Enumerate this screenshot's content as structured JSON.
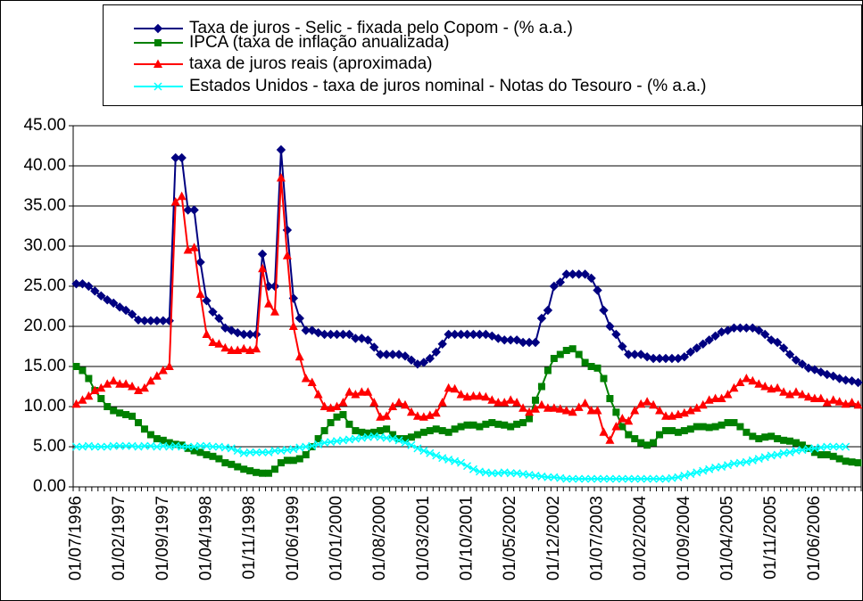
{
  "chart_data": {
    "type": "line",
    "categories": [
      "01/07/1996",
      null,
      null,
      null,
      null,
      null,
      null,
      "01/02/1997",
      null,
      null,
      null,
      null,
      null,
      null,
      "01/09/1997",
      null,
      null,
      null,
      null,
      null,
      null,
      "01/04/1998",
      null,
      null,
      null,
      null,
      null,
      null,
      "01/11/1998",
      null,
      null,
      null,
      null,
      null,
      null,
      "01/06/1999",
      null,
      null,
      null,
      null,
      null,
      null,
      "01/01/2000",
      null,
      null,
      null,
      null,
      null,
      null,
      "01/08/2000",
      null,
      null,
      null,
      null,
      null,
      null,
      "01/03/2001",
      null,
      null,
      null,
      null,
      null,
      null,
      "01/10/2001",
      null,
      null,
      null,
      null,
      null,
      null,
      "01/05/2002",
      null,
      null,
      null,
      null,
      null,
      null,
      "01/12/2002",
      null,
      null,
      null,
      null,
      null,
      null,
      "01/07/2003",
      null,
      null,
      null,
      null,
      null,
      null,
      "01/02/2004",
      null,
      null,
      null,
      null,
      null,
      null,
      "01/09/2004",
      null,
      null,
      null,
      null,
      null,
      null,
      "01/04/2005",
      null,
      null,
      null,
      null,
      null,
      null,
      "01/11/2005",
      null,
      null,
      null,
      null,
      null,
      null,
      "01/06/2006",
      null,
      null,
      null,
      null,
      null,
      null,
      null
    ],
    "series": [
      {
        "name": "Taxa de juros - Selic - fixada pelo Copom - (% a.a.)",
        "color": "#000080",
        "marker": "diamond",
        "values": [
          25.3,
          25.3,
          25.0,
          24.4,
          23.8,
          23.3,
          22.9,
          22.4,
          22.0,
          21.5,
          20.8,
          20.7,
          20.7,
          20.7,
          20.7,
          20.7,
          41.0,
          41.0,
          34.5,
          34.5,
          28.0,
          23.2,
          21.8,
          21.0,
          19.8,
          19.5,
          19.2,
          19.0,
          19.0,
          19.0,
          29.0,
          25.0,
          25.0,
          42.0,
          32.0,
          23.5,
          21.0,
          19.5,
          19.5,
          19.2,
          19.0,
          19.0,
          19.0,
          19.0,
          19.0,
          18.5,
          18.5,
          18.3,
          17.4,
          16.5,
          16.5,
          16.5,
          16.5,
          16.3,
          15.8,
          15.3,
          15.5,
          16.0,
          16.8,
          17.8,
          19.0,
          19.0,
          19.0,
          19.0,
          19.0,
          19.0,
          19.0,
          18.8,
          18.5,
          18.3,
          18.3,
          18.3,
          18.0,
          18.0,
          18.0,
          21.0,
          22.0,
          25.0,
          25.5,
          26.5,
          26.5,
          26.5,
          26.5,
          26.0,
          24.5,
          22.0,
          20.0,
          19.0,
          17.5,
          16.5,
          16.5,
          16.5,
          16.2,
          16.0,
          16.0,
          16.0,
          16.0,
          16.0,
          16.2,
          16.8,
          17.3,
          17.8,
          18.3,
          18.8,
          19.3,
          19.5,
          19.8,
          19.8,
          19.8,
          19.8,
          19.5,
          19.0,
          18.3,
          18.0,
          17.3,
          16.5,
          15.8,
          15.3,
          14.8,
          14.6,
          14.3,
          14.0,
          13.8,
          13.5,
          13.3,
          13.2,
          13.0
        ]
      },
      {
        "name": "IPCA (taxa de inflação anualizada)",
        "color": "#008000",
        "marker": "square",
        "values": [
          15.0,
          14.5,
          13.5,
          12.0,
          11.0,
          10.0,
          9.5,
          9.2,
          9.0,
          8.8,
          8.0,
          7.2,
          6.5,
          6.0,
          5.8,
          5.5,
          5.3,
          5.2,
          4.8,
          4.5,
          4.3,
          4.0,
          3.8,
          3.5,
          3.0,
          2.8,
          2.5,
          2.2,
          2.0,
          1.8,
          1.7,
          1.7,
          2.2,
          3.0,
          3.3,
          3.3,
          3.5,
          4.0,
          5.0,
          6.0,
          7.0,
          8.0,
          8.7,
          9.0,
          7.8,
          7.0,
          6.8,
          6.7,
          6.8,
          7.0,
          7.2,
          6.5,
          6.0,
          6.0,
          6.2,
          6.5,
          6.8,
          7.0,
          7.2,
          7.0,
          6.8,
          7.2,
          7.5,
          7.7,
          7.7,
          7.5,
          7.8,
          8.0,
          7.8,
          7.7,
          7.5,
          7.8,
          8.0,
          8.5,
          10.8,
          12.5,
          14.5,
          16.0,
          16.5,
          17.0,
          17.2,
          16.5,
          15.5,
          15.0,
          14.8,
          13.5,
          11.0,
          9.3,
          7.5,
          6.5,
          6.0,
          5.5,
          5.2,
          5.5,
          6.5,
          7.0,
          7.0,
          6.8,
          7.0,
          7.2,
          7.5,
          7.5,
          7.4,
          7.5,
          7.7,
          8.0,
          8.0,
          7.5,
          6.8,
          6.3,
          6.0,
          6.2,
          6.3,
          6.0,
          5.8,
          5.7,
          5.5,
          5.2,
          4.8,
          4.3,
          4.0,
          4.0,
          3.8,
          3.5,
          3.2,
          3.1,
          3.0
        ]
      },
      {
        "name": "taxa de juros reais (aproximada)",
        "color": "#ff0000",
        "marker": "triangle",
        "values": [
          10.3,
          10.8,
          11.3,
          12.0,
          12.3,
          12.8,
          13.2,
          12.8,
          12.8,
          12.5,
          12.0,
          12.3,
          13.2,
          13.8,
          14.5,
          15.0,
          35.5,
          36.2,
          29.5,
          29.8,
          24.0,
          19.0,
          18.0,
          17.8,
          17.3,
          17.0,
          17.0,
          17.2,
          17.0,
          17.2,
          27.2,
          22.8,
          21.8,
          38.5,
          28.8,
          20.0,
          16.2,
          13.5,
          13.0,
          11.5,
          10.0,
          9.8,
          10.0,
          10.5,
          11.8,
          11.5,
          11.8,
          11.8,
          10.5,
          8.7,
          8.8,
          10.0,
          10.5,
          10.2,
          9.3,
          8.8,
          8.7,
          8.9,
          9.2,
          10.5,
          12.3,
          12.2,
          11.5,
          11.2,
          11.3,
          11.3,
          11.2,
          10.8,
          10.5,
          10.5,
          10.8,
          10.5,
          9.8,
          9.3,
          9.7,
          10.2,
          9.8,
          9.8,
          9.7,
          9.5,
          9.3,
          9.9,
          10.4,
          9.5,
          9.5,
          6.8,
          5.8,
          7.5,
          8.5,
          8.2,
          9.5,
          10.3,
          10.6,
          10.2,
          9.5,
          8.8,
          8.8,
          9.0,
          9.2,
          9.5,
          9.8,
          10.2,
          10.8,
          11.0,
          11.0,
          11.5,
          12.3,
          13.0,
          13.5,
          13.2,
          12.8,
          12.5,
          12.2,
          12.3,
          11.8,
          11.5,
          11.8,
          11.5,
          11.2,
          11.0,
          11.0,
          10.5,
          10.8,
          10.6,
          10.3,
          10.5,
          10.2
        ]
      },
      {
        "name": "Estados Unidos - taxa de juros nominal - Notas do Tesouro - (% a.a.)",
        "color": "#00ffff",
        "marker": "x",
        "values": [
          5.0,
          5.0,
          5.1,
          5.0,
          5.0,
          5.0,
          5.1,
          5.1,
          5.1,
          5.1,
          5.0,
          5.1,
          5.1,
          5.0,
          5.1,
          5.0,
          5.1,
          5.0,
          5.0,
          5.0,
          5.1,
          5.1,
          5.0,
          5.0,
          4.9,
          4.8,
          4.5,
          4.2,
          4.3,
          4.3,
          4.3,
          4.3,
          4.5,
          4.5,
          4.6,
          4.7,
          4.9,
          5.0,
          5.1,
          5.3,
          5.5,
          5.6,
          5.7,
          5.8,
          5.9,
          6.0,
          6.1,
          6.2,
          6.3,
          6.2,
          6.1,
          6.0,
          5.8,
          5.5,
          5.2,
          4.8,
          4.5,
          4.2,
          3.9,
          3.6,
          3.4,
          3.2,
          3.0,
          2.6,
          2.2,
          1.9,
          1.8,
          1.7,
          1.7,
          1.8,
          1.7,
          1.7,
          1.6,
          1.5,
          1.4,
          1.3,
          1.2,
          1.2,
          1.1,
          1.0,
          1.0,
          1.0,
          1.0,
          1.0,
          1.0,
          1.0,
          1.0,
          1.0,
          1.0,
          1.0,
          1.0,
          1.0,
          1.0,
          1.0,
          1.0,
          1.0,
          1.1,
          1.2,
          1.4,
          1.6,
          1.8,
          2.0,
          2.2,
          2.4,
          2.5,
          2.7,
          2.9,
          3.0,
          3.1,
          3.3,
          3.5,
          3.7,
          3.9,
          4.0,
          4.2,
          4.3,
          4.5,
          4.6,
          4.7,
          4.8,
          4.9,
          5.0,
          5.0,
          5.0,
          5.0,
          null,
          null
        ]
      }
    ],
    "ylim": [
      0,
      45
    ],
    "yticks": [
      {
        "value": 0,
        "label": "0.00"
      },
      {
        "value": 5,
        "label": "5.00"
      },
      {
        "value": 10,
        "label": "10.00"
      },
      {
        "value": 15,
        "label": "15.00"
      },
      {
        "value": 20,
        "label": "20.00"
      },
      {
        "value": 25,
        "label": "25.00"
      },
      {
        "value": 30,
        "label": "30.00"
      },
      {
        "value": 35,
        "label": "35.00"
      },
      {
        "value": 40,
        "label": "40.00"
      },
      {
        "value": 45,
        "label": "45.00"
      }
    ],
    "grid": true,
    "legend": "top"
  }
}
